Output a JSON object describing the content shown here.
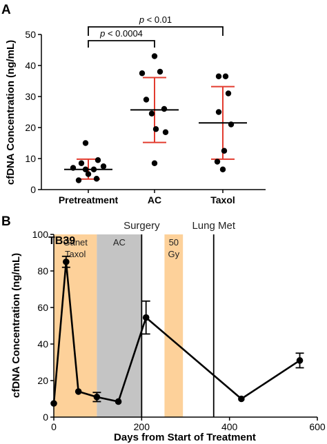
{
  "colors": {
    "mean_line": "#000000",
    "error_bar": "#e23b2e",
    "points": "#000000",
    "chemo_band": "#fdd19a",
    "ac_band": "#c4c4c4"
  },
  "chart_data": [
    {
      "panel": "A",
      "type": "scatter",
      "ylabel": "cfDNA Concentration (ng/mL)",
      "ylim": [
        0,
        50
      ],
      "yticks": [
        "0",
        "10",
        "20",
        "30",
        "40",
        "50"
      ],
      "categories": [
        "Pretreatment",
        "AC",
        "Taxol"
      ],
      "points": [
        [
          15,
          9.5,
          8.5,
          7.5,
          7,
          6.5,
          6.5,
          5,
          3.5,
          3
        ],
        [
          43,
          38,
          37.5,
          29,
          26,
          24.5,
          19.5,
          18.5,
          8.5
        ],
        [
          36.5,
          36.5,
          31,
          25,
          21,
          12.5,
          9,
          6.5
        ]
      ],
      "means": [
        6.5,
        25.7,
        21.5
      ],
      "error_low": [
        3.4,
        15.2,
        9.8
      ],
      "error_high": [
        9.8,
        36.1,
        33.2
      ],
      "significance": [
        {
          "from": "Pretreatment",
          "to": "AC",
          "text": "p < 0.0004",
          "p_symbol": "p",
          "rest": " < 0.0004"
        },
        {
          "from": "Pretreatment",
          "to": "Taxol",
          "text": "p < 0.01",
          "p_symbol": "p",
          "rest": " < 0.01"
        }
      ]
    },
    {
      "panel": "B",
      "type": "line",
      "patient": "TB39",
      "xlabel": "Days from Start of Treatment",
      "ylabel": "cfDNA Concentration (ng/mL)",
      "xlim": [
        0,
        600
      ],
      "ylim": [
        0,
        100
      ],
      "xticks": [
        "0",
        "200",
        "400",
        "600"
      ],
      "yticks": [
        "0",
        "20",
        "40",
        "60",
        "80",
        "100"
      ],
      "series": [
        {
          "x": [
            0,
            28,
            56,
            98,
            147,
            210,
            427,
            560
          ],
          "y": [
            7.5,
            85,
            14,
            11,
            8.5,
            54.5,
            10,
            31
          ],
          "err": [
            0,
            3,
            0,
            2.5,
            0,
            9,
            0,
            4
          ]
        }
      ],
      "phases": [
        {
          "label_lines": [
            "Ganet",
            "Taxol"
          ],
          "start": 0,
          "end": 98,
          "color": "chemo"
        },
        {
          "label_lines": [
            "AC"
          ],
          "start": 98,
          "end": 200,
          "color": "ac"
        },
        {
          "label_lines": [
            "50",
            "Gy"
          ],
          "start": 252,
          "end": 294,
          "color": "chemo"
        }
      ],
      "events": [
        {
          "label": "Surgery",
          "x": 200
        },
        {
          "label": "Lung Met",
          "x": 364
        }
      ]
    }
  ]
}
